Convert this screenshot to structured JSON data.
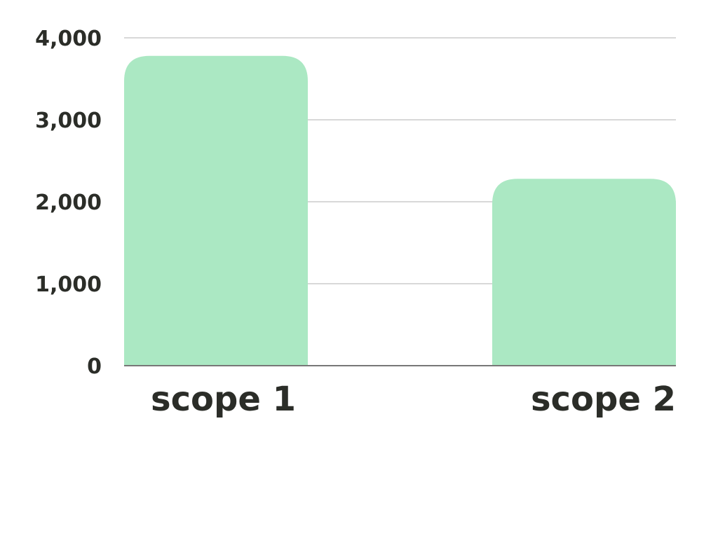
{
  "chart_data": {
    "type": "bar",
    "categories": [
      "scope 1",
      "scope 2"
    ],
    "values": [
      3780,
      2280
    ],
    "ylim": [
      0,
      4000
    ],
    "yticks": [
      0,
      1000,
      2000,
      3000,
      4000
    ],
    "ytick_labels": [
      "0",
      "1,000",
      "2,000",
      "3,000",
      "4,000"
    ],
    "grid": true,
    "legend": "none",
    "colors": {
      "bar": "#abe8c3",
      "grid": "#cccccc",
      "axis": "#777777",
      "text": "#2b2d28"
    }
  }
}
